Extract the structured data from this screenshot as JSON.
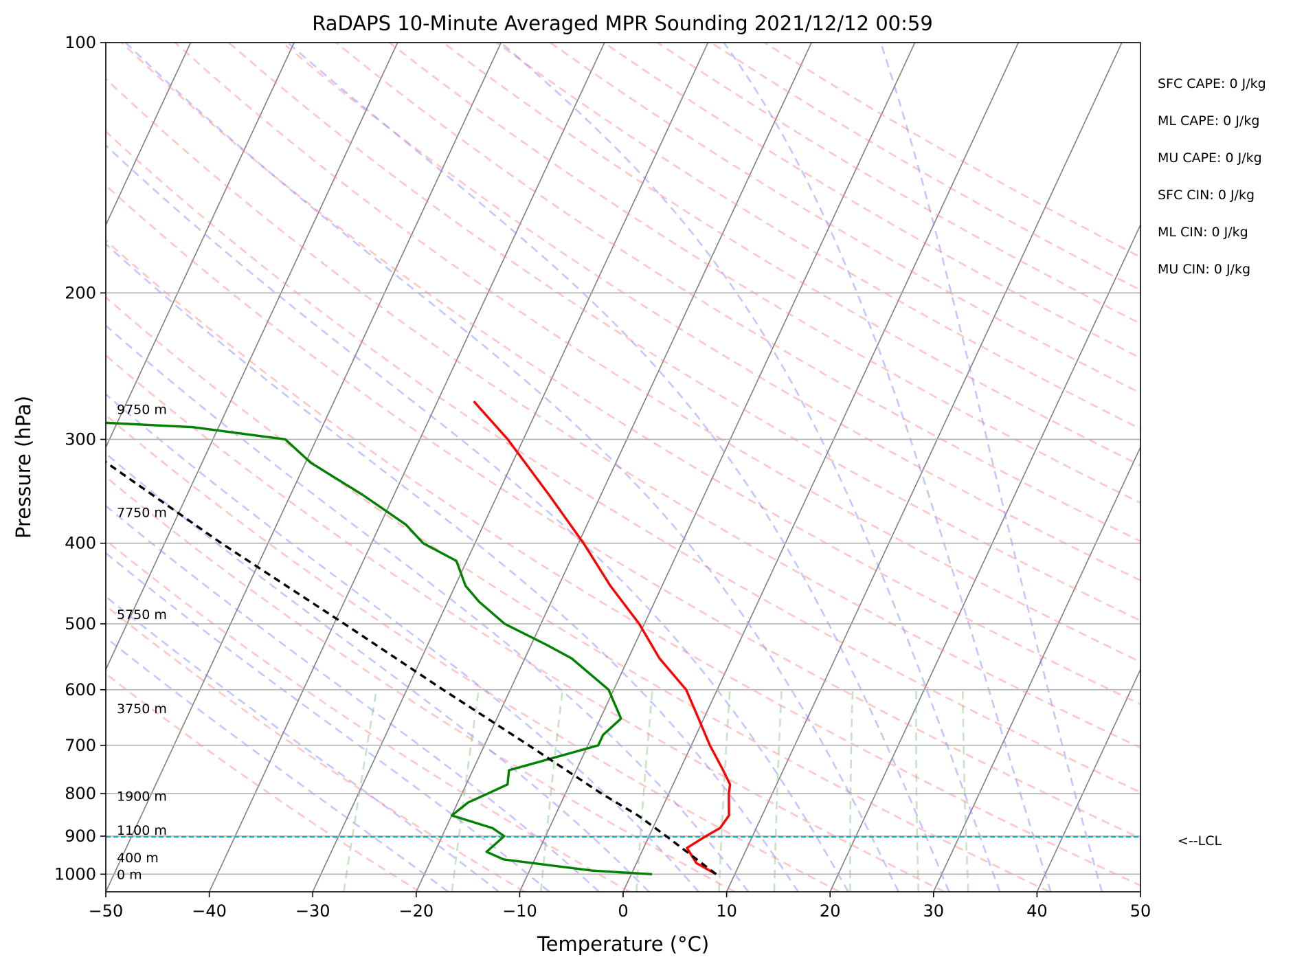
{
  "chart_data": {
    "type": "line",
    "title": "RaDAPS 10-Minute Averaged MPR Sounding 2021/12/12 00:59",
    "xlabel": "Temperature (°C)",
    "ylabel": "Pressure (hPa)",
    "xlim": [
      -50,
      50
    ],
    "ylim": [
      1050,
      100
    ],
    "yscale": "log",
    "skew": "skew-T log-P",
    "grid": true,
    "x_ticks": [
      -50,
      -40,
      -30,
      -20,
      -10,
      0,
      10,
      20,
      30,
      40,
      50
    ],
    "y_ticks": [
      100,
      200,
      300,
      400,
      500,
      600,
      700,
      800,
      900,
      1000
    ],
    "x_tick_labels": [
      "−50",
      "−40",
      "−30",
      "−20",
      "−10",
      "0",
      "10",
      "20",
      "30",
      "40",
      "50"
    ],
    "y_tick_labels": [
      "100",
      "200",
      "300",
      "400",
      "500",
      "600",
      "700",
      "800",
      "900",
      "1000"
    ],
    "series": [
      {
        "role": "temperature",
        "color": "#ff0000",
        "style": "solid",
        "points": [
          [
            1000,
            8.2
          ],
          [
            970,
            5.8
          ],
          [
            930,
            4.2
          ],
          [
            900,
            5.5
          ],
          [
            880,
            6.5
          ],
          [
            850,
            6.8
          ],
          [
            820,
            6.2
          ],
          [
            800,
            5.8
          ],
          [
            780,
            5.5
          ],
          [
            750,
            4.2
          ],
          [
            700,
            1.8
          ],
          [
            650,
            -0.5
          ],
          [
            600,
            -3.0
          ],
          [
            550,
            -7.0
          ],
          [
            500,
            -10.5
          ],
          [
            450,
            -15.0
          ],
          [
            400,
            -19.5
          ],
          [
            350,
            -25.0
          ],
          [
            300,
            -31.5
          ],
          [
            270,
            -36.5
          ]
        ]
      },
      {
        "role": "dewpoint",
        "color": "#008000",
        "style": "solid",
        "points": [
          [
            1000,
            2.0
          ],
          [
            990,
            -4.0
          ],
          [
            960,
            -13.0
          ],
          [
            940,
            -15.0
          ],
          [
            920,
            -14.5
          ],
          [
            900,
            -14.0
          ],
          [
            880,
            -15.5
          ],
          [
            850,
            -20.0
          ],
          [
            820,
            -19.0
          ],
          [
            800,
            -17.5
          ],
          [
            780,
            -16.0
          ],
          [
            750,
            -16.5
          ],
          [
            700,
            -9.0
          ],
          [
            680,
            -9.0
          ],
          [
            650,
            -8.0
          ],
          [
            600,
            -10.5
          ],
          [
            550,
            -15.5
          ],
          [
            530,
            -18.5
          ],
          [
            500,
            -23.5
          ],
          [
            470,
            -27.0
          ],
          [
            450,
            -29.0
          ],
          [
            420,
            -31.0
          ],
          [
            400,
            -35.0
          ],
          [
            380,
            -37.5
          ],
          [
            350,
            -43.0
          ],
          [
            320,
            -49.5
          ],
          [
            300,
            -53.0
          ],
          [
            290,
            -62.5
          ],
          [
            285,
            -75.0
          ]
        ]
      },
      {
        "role": "parcel",
        "color": "#000000",
        "style": "dashed",
        "points": [
          [
            1000,
            8.2
          ],
          [
            902,
            1.8
          ],
          [
            850,
            -2.0
          ],
          [
            800,
            -6.5
          ],
          [
            700,
            -15.7
          ],
          [
            600,
            -26.5
          ],
          [
            500,
            -39.0
          ],
          [
            400,
            -54.5
          ],
          [
            300,
            -73.5
          ],
          [
            265,
            -82.0
          ]
        ]
      }
    ],
    "lcl": {
      "pressure": 902,
      "color": "#00bfbf",
      "label": "<--LCL"
    },
    "height_labels": [
      {
        "pressure": 1000,
        "text": "0 m"
      },
      {
        "pressure": 955,
        "text": "400 m"
      },
      {
        "pressure": 885,
        "text": "1100 m"
      },
      {
        "pressure": 805,
        "text": "1900 m"
      },
      {
        "pressure": 632,
        "text": "3750 m"
      },
      {
        "pressure": 487,
        "text": "5750 m"
      },
      {
        "pressure": 367,
        "text": "7750 m"
      },
      {
        "pressure": 276,
        "text": "9750 m"
      }
    ],
    "indices": [
      "SFC CAPE: 0 J/kg",
      "ML CAPE: 0 J/kg",
      "MU CAPE: 0 J/kg",
      "SFC CIN: 0 J/kg",
      "ML CIN: 0 J/kg",
      "MU CIN: 0 J/kg"
    ],
    "background_lines": {
      "isotherms": {
        "color": "#808080"
      },
      "dry_adiabats": {
        "color": "#ff8080"
      },
      "moist_adiabats": {
        "color": "#8080ff"
      },
      "mixing_ratio": {
        "color": "#80c080"
      }
    }
  }
}
